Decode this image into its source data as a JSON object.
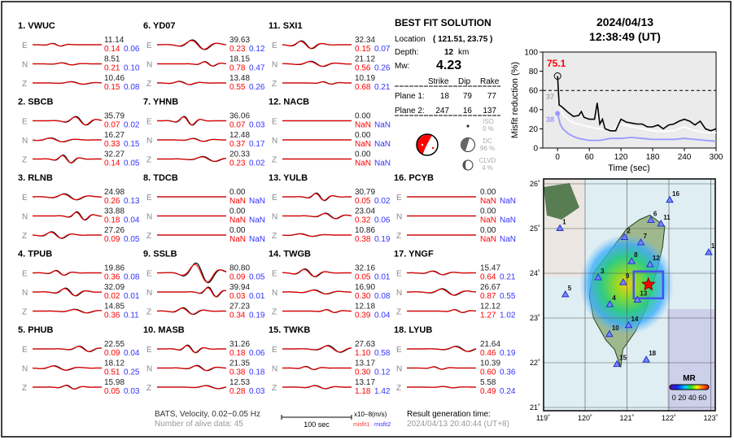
{
  "solution": {
    "title": "BEST FIT SOLUTION",
    "location_label": "Location",
    "location_value": "( 121.51,  23.75 )",
    "depth_label": "Depth:",
    "depth_value": "12",
    "depth_unit": "km",
    "mw_label": "Mw:",
    "mw_value": "4.23",
    "headers": [
      "Strike",
      "Dip",
      "Rake"
    ],
    "planes": [
      {
        "label": "Plane 1:",
        "strike": "18",
        "dip": "79",
        "rake": "77"
      },
      {
        "label": "Plane 2:",
        "strike": "247",
        "dip": "16",
        "rake": "137"
      }
    ],
    "iso_label": "ISO",
    "iso_value": "0  %",
    "dc_label": "DC",
    "dc_value": "96 %",
    "clvd_label": "CLVD",
    "clvd_value": "4  %"
  },
  "event": {
    "date": "2024/04/13",
    "time": "12:38:49  (UT)"
  },
  "colors": {
    "observed": "#000000",
    "synthetic": "#ff0000",
    "misfit1": "#ff0000",
    "misfit2": "#3333ff",
    "beachball": "#ff0000"
  },
  "stations": [
    {
      "title": "1.  VWUC",
      "comps": [
        {
          "c": "E",
          "amp": "11.14",
          "m1": "0.14",
          "m2": "0.06"
        },
        {
          "c": "N",
          "amp": "8.51",
          "m1": "0.21",
          "m2": "0.10"
        },
        {
          "c": "Z",
          "amp": "10.46",
          "m1": "0.15",
          "m2": "0.08"
        }
      ]
    },
    {
      "title": "2.  SBCB",
      "comps": [
        {
          "c": "E",
          "amp": "35.79",
          "m1": "0.07",
          "m2": "0.02"
        },
        {
          "c": "N",
          "amp": "16.27",
          "m1": "0.33",
          "m2": "0.15"
        },
        {
          "c": "Z",
          "amp": "32.27",
          "m1": "0.14",
          "m2": "0.05"
        }
      ]
    },
    {
      "title": "3.  RLNB",
      "comps": [
        {
          "c": "E",
          "amp": "24.98",
          "m1": "0.26",
          "m2": "0.13"
        },
        {
          "c": "N",
          "amp": "33.88",
          "m1": "0.18",
          "m2": "0.04"
        },
        {
          "c": "Z",
          "amp": "27.26",
          "m1": "0.09",
          "m2": "0.05"
        }
      ]
    },
    {
      "title": "4.  TPUB",
      "comps": [
        {
          "c": "E",
          "amp": "19.86",
          "m1": "0.36",
          "m2": "0.08"
        },
        {
          "c": "N",
          "amp": "32.09",
          "m1": "0.02",
          "m2": "0.01"
        },
        {
          "c": "Z",
          "amp": "14.85",
          "m1": "0.36",
          "m2": "0.11"
        }
      ]
    },
    {
      "title": "5.  PHUB",
      "comps": [
        {
          "c": "E",
          "amp": "22.55",
          "m1": "0.09",
          "m2": "0.04"
        },
        {
          "c": "N",
          "amp": "18.12",
          "m1": "0.51",
          "m2": "0.25"
        },
        {
          "c": "Z",
          "amp": "15.98",
          "m1": "0.05",
          "m2": "0.03"
        }
      ]
    },
    {
      "title": "6.  YD07",
      "comps": [
        {
          "c": "E",
          "amp": "39.63",
          "m1": "0.23",
          "m2": "0.12"
        },
        {
          "c": "N",
          "amp": "18.15",
          "m1": "0.78",
          "m2": "0.47"
        },
        {
          "c": "Z",
          "amp": "13.48",
          "m1": "0.55",
          "m2": "0.26"
        }
      ]
    },
    {
      "title": "7.  YHNB",
      "comps": [
        {
          "c": "E",
          "amp": "36.06",
          "m1": "0.07",
          "m2": "0.03"
        },
        {
          "c": "N",
          "amp": "12.48",
          "m1": "0.37",
          "m2": "0.17"
        },
        {
          "c": "Z",
          "amp": "20.33",
          "m1": "0.23",
          "m2": "0.02"
        }
      ]
    },
    {
      "title": "8.  TDCB",
      "comps": [
        {
          "c": "E",
          "amp": "0.00",
          "m1": "NaN",
          "m2": "NaN"
        },
        {
          "c": "N",
          "amp": "0.00",
          "m1": "NaN",
          "m2": "NaN"
        },
        {
          "c": "Z",
          "amp": "0.00",
          "m1": "NaN",
          "m2": "NaN"
        }
      ]
    },
    {
      "title": "9.  SSLB",
      "comps": [
        {
          "c": "E",
          "amp": "80.80",
          "m1": "0.09",
          "m2": "0.05"
        },
        {
          "c": "N",
          "amp": "39.94",
          "m1": "0.03",
          "m2": "0.01"
        },
        {
          "c": "Z",
          "amp": "27.23",
          "m1": "0.34",
          "m2": "0.19"
        }
      ]
    },
    {
      "title": "10. MASB",
      "comps": [
        {
          "c": "E",
          "amp": "31.26",
          "m1": "0.18",
          "m2": "0.06"
        },
        {
          "c": "N",
          "amp": "21.35",
          "m1": "0.38",
          "m2": "0.18"
        },
        {
          "c": "Z",
          "amp": "12.53",
          "m1": "0.28",
          "m2": "0.03"
        }
      ]
    },
    {
      "title": "11. SXI1",
      "comps": [
        {
          "c": "E",
          "amp": "32.34",
          "m1": "0.15",
          "m2": "0.07"
        },
        {
          "c": "N",
          "amp": "21.12",
          "m1": "0.56",
          "m2": "0.26"
        },
        {
          "c": "Z",
          "amp": "10.19",
          "m1": "0.68",
          "m2": "0.21"
        }
      ]
    },
    {
      "title": "12. NACB",
      "comps": [
        {
          "c": "E",
          "amp": "0.00",
          "m1": "NaN",
          "m2": "NaN"
        },
        {
          "c": "N",
          "amp": "0.00",
          "m1": "NaN",
          "m2": "NaN"
        },
        {
          "c": "Z",
          "amp": "0.00",
          "m1": "NaN",
          "m2": "NaN"
        }
      ]
    },
    {
      "title": "13. YULB",
      "comps": [
        {
          "c": "E",
          "amp": "30.79",
          "m1": "0.05",
          "m2": "0.02"
        },
        {
          "c": "N",
          "amp": "23.04",
          "m1": "0.32",
          "m2": "0.06"
        },
        {
          "c": "Z",
          "amp": "10.86",
          "m1": "0.38",
          "m2": "0.19"
        }
      ]
    },
    {
      "title": "14. TWGB",
      "comps": [
        {
          "c": "E",
          "amp": "32.16",
          "m1": "0.05",
          "m2": "0.01"
        },
        {
          "c": "N",
          "amp": "16.90",
          "m1": "0.30",
          "m2": "0.08"
        },
        {
          "c": "Z",
          "amp": "12.18",
          "m1": "0.39",
          "m2": "0.04"
        }
      ]
    },
    {
      "title": "15. TWKB",
      "comps": [
        {
          "c": "E",
          "amp": "27.63",
          "m1": "1.10",
          "m2": "0.58"
        },
        {
          "c": "N",
          "amp": "13.17",
          "m1": "0.30",
          "m2": "0.12"
        },
        {
          "c": "Z",
          "amp": "13.17",
          "m1": "1.18",
          "m2": "1.42"
        }
      ]
    },
    {
      "title": "16. PCYB",
      "comps": [
        {
          "c": "E",
          "amp": "0.00",
          "m1": "NaN",
          "m2": "NaN"
        },
        {
          "c": "N",
          "amp": "0.00",
          "m1": "NaN",
          "m2": "NaN"
        },
        {
          "c": "Z",
          "amp": "0.00",
          "m1": "NaN",
          "m2": "NaN"
        }
      ]
    },
    {
      "title": "17. YNGF",
      "comps": [
        {
          "c": "E",
          "amp": "15.47",
          "m1": "0.64",
          "m2": "0.21"
        },
        {
          "c": "N",
          "amp": "26.67",
          "m1": "0.87",
          "m2": "0.55"
        },
        {
          "c": "Z",
          "amp": "12.12",
          "m1": "1.27",
          "m2": "1.02"
        }
      ]
    },
    {
      "title": "18. LYUB",
      "comps": [
        {
          "c": "E",
          "amp": "21.64",
          "m1": "0.46",
          "m2": "0.19"
        },
        {
          "c": "N",
          "amp": "10.39",
          "m1": "0.60",
          "m2": "0.36"
        },
        {
          "c": "Z",
          "amp": "5.58",
          "m1": "0.49",
          "m2": "0.24"
        }
      ]
    }
  ],
  "footer": {
    "filter": "BATS, Velocity, 0.02−0.05 Hz",
    "alive": "Number of alive data: 45",
    "scale_label": "100 sec",
    "unit": "x10−8(m/s)",
    "misfit1": "misfit1",
    "misfit2": "misfit2",
    "gen_label": "Result generation time:",
    "gen_time": "2024/04/13 20:40:44 (UT+8)"
  },
  "chart_data": [
    {
      "type": "line",
      "xlabel": "Time (sec)",
      "ylabel": "Misfit reduction (%)",
      "xlim": [
        -28,
        300
      ],
      "ylim": [
        0,
        100
      ],
      "xticks": [
        "0",
        "60",
        "120",
        "180",
        "240",
        "300"
      ],
      "yticks": [
        "0",
        "20",
        "40",
        "60",
        "80",
        "100"
      ],
      "threshold": 60,
      "annotations": {
        "best": "75.1",
        "gray": "37",
        "blue": "38"
      },
      "series": [
        {
          "color": "#000000",
          "x": [
            0,
            3,
            10,
            20,
            30,
            40,
            45,
            50,
            60,
            70,
            75,
            80,
            85,
            90,
            100,
            110,
            120,
            130,
            140,
            150,
            160,
            170,
            180,
            190,
            200,
            210,
            220,
            230,
            240,
            250,
            260,
            270,
            280,
            290,
            300
          ],
          "y": [
            75,
            45,
            42,
            37,
            33,
            34,
            38,
            32,
            30,
            30,
            47,
            25,
            30,
            20,
            18,
            18,
            30,
            27,
            26,
            25,
            25,
            22,
            22,
            24,
            20,
            24,
            25,
            28,
            30,
            28,
            24,
            28,
            20,
            18,
            20
          ]
        },
        {
          "color": "#ffffff",
          "x": [
            0,
            10,
            20,
            30,
            40,
            60,
            80,
            100,
            120,
            140,
            160,
            180,
            200,
            220,
            240,
            260,
            280,
            300
          ],
          "y": [
            52,
            35,
            30,
            26,
            25,
            22,
            20,
            18,
            25,
            22,
            20,
            18,
            17,
            18,
            22,
            18,
            16,
            16
          ]
        },
        {
          "color": "#9999ff",
          "x": [
            0,
            5,
            10,
            20,
            30,
            40,
            60,
            80,
            100,
            120,
            140,
            160,
            180,
            200,
            220,
            240,
            260,
            280,
            300
          ],
          "y": [
            36,
            25,
            20,
            15,
            12,
            10,
            8,
            8,
            10,
            10,
            11,
            10,
            9,
            9,
            9,
            10,
            9,
            8,
            7
          ]
        }
      ]
    }
  ],
  "map": {
    "lon_ticks": [
      "119˚",
      "120˚",
      "121˚",
      "122˚",
      "123˚"
    ],
    "lat_ticks": [
      "21˚",
      "22˚",
      "23˚",
      "24˚",
      "25˚",
      "26˚"
    ],
    "epicenter": {
      "lon": 121.51,
      "lat": 23.75
    },
    "colorbar_title": "MR",
    "colorbar_labels": "0 20 40 60",
    "stations": [
      {
        "n": "1",
        "lon": 119.4,
        "lat": 25.01
      },
      {
        "n": "2",
        "lon": 120.94,
        "lat": 24.81
      },
      {
        "n": "3",
        "lon": 120.31,
        "lat": 23.91
      },
      {
        "n": "4",
        "lon": 120.59,
        "lat": 23.31
      },
      {
        "n": "5",
        "lon": 119.53,
        "lat": 23.53
      },
      {
        "n": "6",
        "lon": 121.57,
        "lat": 25.19
      },
      {
        "n": "7",
        "lon": 121.33,
        "lat": 24.69
      },
      {
        "n": "8",
        "lon": 121.11,
        "lat": 24.27
      },
      {
        "n": "9",
        "lon": 120.91,
        "lat": 23.8
      },
      {
        "n": "10",
        "lon": 120.58,
        "lat": 22.64
      },
      {
        "n": "11",
        "lon": 121.81,
        "lat": 25.11
      },
      {
        "n": "12",
        "lon": 121.55,
        "lat": 24.2
      },
      {
        "n": "13",
        "lon": 121.25,
        "lat": 23.41
      },
      {
        "n": "14",
        "lon": 121.04,
        "lat": 22.84
      },
      {
        "n": "15",
        "lon": 120.76,
        "lat": 21.97
      },
      {
        "n": "16",
        "lon": 122.02,
        "lat": 25.64
      },
      {
        "n": "17",
        "lon": 122.95,
        "lat": 24.47
      },
      {
        "n": "18",
        "lon": 121.46,
        "lat": 22.07
      }
    ]
  }
}
